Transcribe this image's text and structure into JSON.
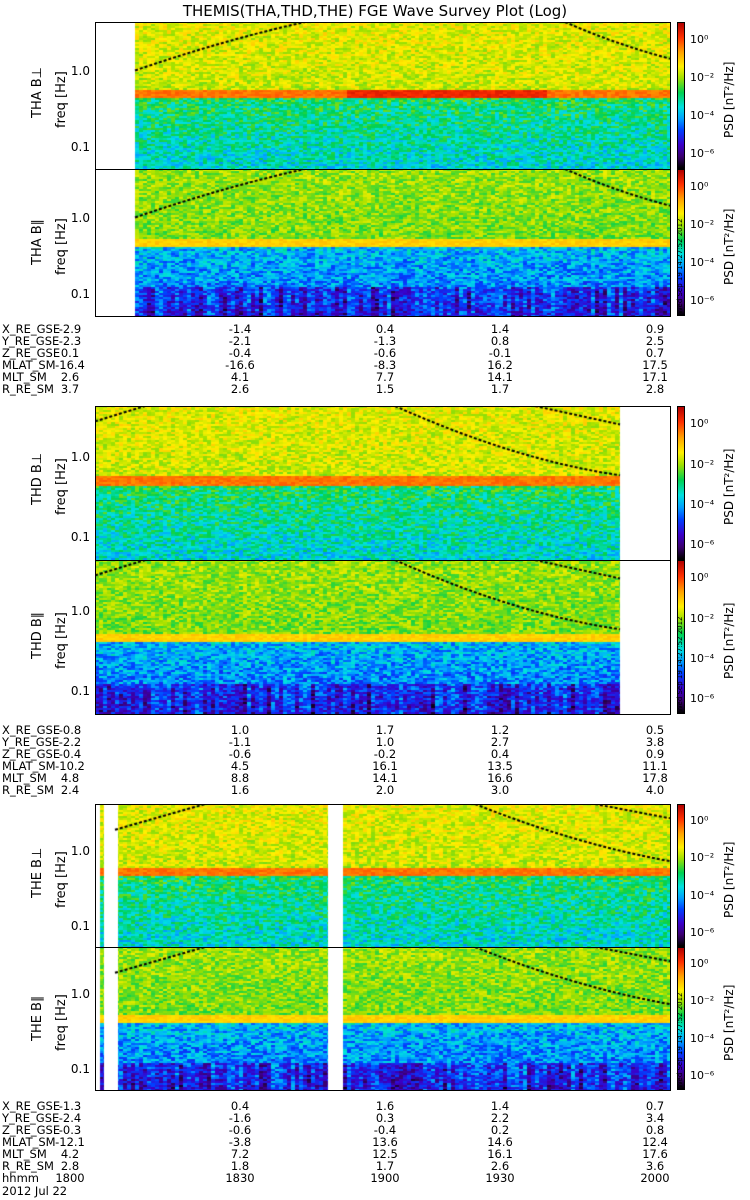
{
  "title": "THEMIS(THA,THD,THE) FGE Wave Survey Plot (Log)",
  "colorbar": {
    "label": "PSD [nT²/Hz]",
    "ticks": [
      "10⁰",
      "10⁻²",
      "10⁻⁴",
      "10⁻⁶"
    ],
    "stamp": "Wed Sep 19 14:27:52 2012"
  },
  "chart_data": [
    {
      "type": "heatmap",
      "probe": "THA",
      "component": "B⊥",
      "ylabel": "THA B⊥",
      "ytitle": "freq [Hz]",
      "yticks": [
        "1.0",
        "0.1"
      ],
      "yscale": "log",
      "cbar": "log PSD"
    },
    {
      "type": "heatmap",
      "probe": "THA",
      "component": "B∥",
      "ylabel": "THA B∥",
      "ytitle": "freq [Hz]",
      "yticks": [
        "1.0",
        "0.1"
      ],
      "yscale": "log"
    },
    {
      "type": "heatmap",
      "probe": "THD",
      "component": "B⊥",
      "ylabel": "THD B⊥",
      "ytitle": "freq [Hz]",
      "yticks": [
        "1.0",
        "0.1"
      ],
      "yscale": "log"
    },
    {
      "type": "heatmap",
      "probe": "THD",
      "component": "B∥",
      "ylabel": "THD B∥",
      "ytitle": "freq [Hz]",
      "yticks": [
        "1.0",
        "0.1"
      ],
      "yscale": "log"
    },
    {
      "type": "heatmap",
      "probe": "THE",
      "component": "B⊥",
      "ylabel": "THE B⊥",
      "ytitle": "freq [Hz]",
      "yticks": [
        "1.0",
        "0.1"
      ],
      "yscale": "log"
    },
    {
      "type": "heatmap",
      "probe": "THE",
      "component": "B∥",
      "ylabel": "THE B∥",
      "ytitle": "freq [Hz]",
      "yticks": [
        "1.0",
        "0.1"
      ],
      "yscale": "log"
    }
  ],
  "ephemeris": [
    {
      "probe": "THA",
      "rows": [
        {
          "label": "X_RE_GSE",
          "values": [
            "-2.9",
            "-1.4",
            "0.4",
            "1.4",
            "0.9"
          ]
        },
        {
          "label": "Y_RE_GSE",
          "values": [
            "-2.3",
            "-2.1",
            "-1.3",
            "0.8",
            "2.5"
          ]
        },
        {
          "label": "Z_RE_GSE",
          "values": [
            "0.1",
            "-0.4",
            "-0.6",
            "-0.1",
            "0.7"
          ]
        },
        {
          "label": "MLAT_SM",
          "values": [
            "-16.4",
            "-16.6",
            "-8.3",
            "16.2",
            "17.5"
          ]
        },
        {
          "label": "MLT_SM",
          "values": [
            "2.6",
            "4.1",
            "7.7",
            "14.1",
            "17.1"
          ]
        },
        {
          "label": "R_RE_SM",
          "values": [
            "3.7",
            "2.6",
            "1.5",
            "1.7",
            "2.8"
          ]
        }
      ]
    },
    {
      "probe": "THD",
      "rows": [
        {
          "label": "X_RE_GSE",
          "values": [
            "-0.8",
            "1.0",
            "1.7",
            "1.2",
            "0.5"
          ]
        },
        {
          "label": "Y_RE_GSE",
          "values": [
            "-2.2",
            "-1.1",
            "1.0",
            "2.7",
            "3.8"
          ]
        },
        {
          "label": "Z_RE_GSE",
          "values": [
            "-0.4",
            "-0.6",
            "-0.2",
            "0.4",
            "0.9"
          ]
        },
        {
          "label": "MLAT_SM",
          "values": [
            "-10.2",
            "4.5",
            "16.1",
            "13.5",
            "11.1"
          ]
        },
        {
          "label": "MLT_SM",
          "values": [
            "4.8",
            "8.8",
            "14.1",
            "16.6",
            "17.8"
          ]
        },
        {
          "label": "R_RE_SM",
          "values": [
            "2.4",
            "1.6",
            "2.0",
            "3.0",
            "4.0"
          ]
        }
      ]
    },
    {
      "probe": "THE",
      "rows": [
        {
          "label": "X_RE_GSE",
          "values": [
            "-1.3",
            "0.4",
            "1.6",
            "1.4",
            "0.7"
          ]
        },
        {
          "label": "Y_RE_GSE",
          "values": [
            "-2.4",
            "-1.6",
            "0.3",
            "2.2",
            "3.4"
          ]
        },
        {
          "label": "Z_RE_GSE",
          "values": [
            "-0.3",
            "-0.6",
            "-0.4",
            "0.2",
            "0.8"
          ]
        },
        {
          "label": "MLAT_SM",
          "values": [
            "-12.1",
            "-3.8",
            "13.6",
            "14.6",
            "12.4"
          ]
        },
        {
          "label": "MLT_SM",
          "values": [
            "4.2",
            "7.2",
            "12.5",
            "16.1",
            "17.6"
          ]
        },
        {
          "label": "R_RE_SM",
          "values": [
            "2.8",
            "1.8",
            "1.7",
            "2.6",
            "3.6"
          ]
        },
        {
          "label": "hhmm",
          "values": [
            "1800",
            "1830",
            "1900",
            "1930",
            "2000"
          ]
        }
      ]
    }
  ],
  "date_label": "2012 Jul 22"
}
